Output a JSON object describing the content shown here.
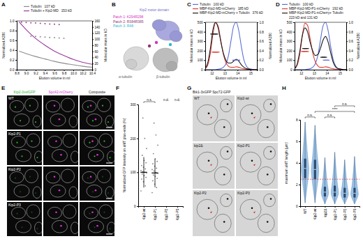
{
  "panels": [
    "A",
    "B",
    "C",
    "D",
    "E",
    "F",
    "G",
    "H"
  ],
  "chart_data": [
    {
      "type": "line",
      "x_label": "Elution volume in ml",
      "y_label": "Normalized A280",
      "y2_label": "Molecular mass in kD",
      "xlim": [
        8.8,
        10.4
      ],
      "xticks": [
        8.8,
        {
          "value": 9,
          "label": "9.0"
        },
        9.2,
        9.4,
        9.6,
        9.8,
        {
          "value": 10,
          "label": "10.0"
        },
        10.2,
        10.4
      ],
      "ylim": [
        0,
        1
      ],
      "yticks": [
        {
          "value": 0,
          "label": "0.0"
        },
        0.2,
        0.4,
        0.6,
        0.8,
        {
          "value": 1,
          "label": "1.0"
        }
      ],
      "y2lim": [
        0,
        160
      ],
      "y2ticks": [
        0,
        20,
        40,
        60,
        80,
        100,
        120,
        140,
        160
      ],
      "series": [
        {
          "name": "Tubulin",
          "annotation": "107 kD",
          "color": "#8c8c8c",
          "x": [
            8.85,
            9.0,
            9.2,
            9.4,
            9.6,
            9.8,
            10.0,
            10.2,
            10.4
          ],
          "values": [
            0.38,
            0.33,
            0.27,
            0.22,
            0.17,
            0.13,
            0.1,
            0.07,
            0.05
          ]
        },
        {
          "name": "Tubulin + Kip2-MD",
          "annotation": "153 kD",
          "color": "#9b3a9b",
          "x": [
            8.85,
            9.0,
            9.2,
            9.4,
            9.6,
            9.8,
            10.0,
            10.2,
            10.4
          ],
          "values": [
            0.98,
            0.82,
            0.64,
            0.5,
            0.38,
            0.29,
            0.21,
            0.15,
            0.11
          ]
        },
        {
          "type": "scatter",
          "marker": "circle",
          "axis": "y2",
          "color": "#8c8c8c",
          "x": [
            9.1,
            9.2,
            9.3,
            9.4,
            9.5,
            9.6,
            9.7,
            9.8
          ],
          "values": [
            110,
            109,
            108,
            107,
            106,
            105,
            104,
            103
          ]
        },
        {
          "type": "scatter",
          "marker": "circle",
          "axis": "y2",
          "color": "#9b3a9b",
          "x": [
            8.9,
            9.0,
            9.1,
            9.2,
            9.3,
            9.4,
            9.5,
            9.6,
            9.7
          ],
          "values": [
            156,
            155,
            154,
            153,
            152,
            151,
            150,
            149,
            148
          ]
        }
      ]
    },
    {
      "type": "line",
      "x_label": "Elution volume in ml",
      "y_label": "Molecular mass in kD",
      "y2_label": "Normalized A280",
      "xlim": [
        11.5,
        15.5
      ],
      "xticks": [
        12,
        13,
        14,
        15
      ],
      "ylim": [
        0,
        500
      ],
      "yticks": [
        0,
        100,
        200,
        300,
        400,
        500
      ],
      "y2lim": [
        0,
        1
      ],
      "y2ticks": [
        {
          "value": 0,
          "label": "0.0"
        },
        0.2,
        0.4,
        0.6,
        0.8,
        {
          "value": 1,
          "label": "1.0"
        }
      ],
      "series": [
        {
          "name": "Tubulin",
          "annotation": "100 kD",
          "color": "#5b6fd6",
          "axis": "y2",
          "x": [
            11.5,
            11.7,
            11.9,
            12.1,
            12.3,
            12.5,
            12.7,
            12.9,
            13.1,
            13.3,
            13.5,
            13.7,
            13.9,
            14.1,
            14.3,
            14.5,
            14.7,
            14.9,
            15.1,
            15.3,
            15.5
          ],
          "values": [
            0,
            0,
            0,
            0,
            0,
            0.01,
            0.02,
            0.05,
            0.12,
            0.3,
            0.62,
            0.92,
            1,
            0.82,
            0.48,
            0.2,
            0.07,
            0.02,
            0.01,
            0,
            0
          ]
        },
        {
          "name": "MBP-Kip2-MD-mCherry",
          "annotation": "185 kD",
          "color": "#e0403a",
          "axis": "y2",
          "x": [
            11.5,
            11.7,
            11.9,
            12.1,
            12.3,
            12.5,
            12.7,
            12.9,
            13.1,
            13.3,
            13.5,
            13.7,
            13.9,
            14.1,
            14.3,
            14.5,
            14.7,
            14.9,
            15.1,
            15.3,
            15.5
          ],
          "values": [
            0.02,
            0.1,
            0.35,
            0.75,
            0.99,
            0.92,
            0.62,
            0.33,
            0.15,
            0.07,
            0.05,
            0.05,
            0.06,
            0.05,
            0.03,
            0.02,
            0.01,
            0.01,
            0,
            0,
            0
          ]
        },
        {
          "name": "MBP-Kip2-MD-mCherry + Tubulin",
          "annotation": "376 kD",
          "color": "#1a1a1a",
          "axis": "y2",
          "x": [
            11.5,
            11.7,
            11.9,
            12.1,
            12.3,
            12.5,
            12.7,
            12.9,
            13.1,
            13.3,
            13.5,
            13.7,
            13.9,
            14.1,
            14.3,
            14.5,
            14.7,
            14.9,
            15.1,
            15.3,
            15.5
          ],
          "values": [
            0.03,
            0.15,
            0.45,
            0.85,
            1,
            0.88,
            0.6,
            0.35,
            0.2,
            0.14,
            0.14,
            0.18,
            0.22,
            0.18,
            0.1,
            0.05,
            0.02,
            0.01,
            0,
            0,
            0
          ]
        },
        {
          "type": "scatter",
          "marker": "dash",
          "color": "#5b6fd6",
          "x": [
            13.7,
            13.8,
            13.9,
            14.0,
            14.1
          ],
          "values": [
            100,
            100,
            100,
            100,
            100
          ]
        },
        {
          "type": "scatter",
          "marker": "dash",
          "color": "#e0403a",
          "x": [
            12.1,
            12.2,
            12.3,
            12.4,
            12.5
          ],
          "values": [
            185,
            185,
            185,
            185,
            185
          ]
        },
        {
          "type": "scatter",
          "marker": "dash",
          "color": "#1a1a1a",
          "x": [
            12.0,
            12.1,
            12.2,
            12.3,
            12.4
          ],
          "values": [
            376,
            376,
            376,
            376,
            376
          ]
        }
      ]
    },
    {
      "type": "line",
      "x_label": "Elution volume in ml",
      "y_label": "Molecular mass in kD",
      "y2_label": "Normalized A280",
      "xlim": [
        11.5,
        15.5
      ],
      "xticks": [
        12,
        13,
        14,
        15
      ],
      "ylim": [
        0,
        500
      ],
      "yticks": [
        0,
        100,
        200,
        300,
        400,
        500
      ],
      "y2lim": [
        0,
        1
      ],
      "y2ticks": [
        {
          "value": 0,
          "label": "0.0"
        },
        0.2,
        0.4,
        0.6,
        0.8,
        {
          "value": 1,
          "label": "1.0"
        }
      ],
      "series": [
        {
          "name": "Tubulin",
          "annotation": "100 kD",
          "color": "#5b6fd6",
          "axis": "y2",
          "x": [
            11.5,
            11.7,
            11.9,
            12.1,
            12.3,
            12.5,
            12.7,
            12.9,
            13.1,
            13.3,
            13.5,
            13.7,
            13.9,
            14.1,
            14.3,
            14.5,
            14.7,
            14.9,
            15.1,
            15.3,
            15.5
          ],
          "values": [
            0,
            0,
            0,
            0,
            0,
            0.01,
            0.02,
            0.05,
            0.12,
            0.3,
            0.62,
            0.92,
            1,
            0.82,
            0.48,
            0.2,
            0.07,
            0.02,
            0.01,
            0,
            0
          ]
        },
        {
          "name": "MBP-Kip2-MD-P1-mCherry",
          "annotation": "192 kD",
          "color": "#e0403a",
          "axis": "y2",
          "x": [
            11.5,
            11.7,
            11.9,
            12.1,
            12.3,
            12.5,
            12.7,
            12.9,
            13.1,
            13.3,
            13.5,
            13.7,
            13.9,
            14.1,
            14.3,
            14.5,
            14.7,
            14.9,
            15.1,
            15.3,
            15.5
          ],
          "values": [
            0.02,
            0.09,
            0.32,
            0.72,
            0.98,
            0.94,
            0.66,
            0.36,
            0.17,
            0.08,
            0.05,
            0.05,
            0.06,
            0.05,
            0.03,
            0.02,
            0.01,
            0.01,
            0,
            0,
            0
          ]
        },
        {
          "name": "MBP-Kip2-MD-P1-mCherry+ Tubulin",
          "annotation": "223 kD and 131 kD",
          "color": "#1a1a1a",
          "axis": "y2",
          "x": [
            11.5,
            11.7,
            11.9,
            12.1,
            12.3,
            12.5,
            12.7,
            12.9,
            13.1,
            13.3,
            13.5,
            13.7,
            13.9,
            14.1,
            14.3,
            14.5,
            14.7,
            14.9,
            15.1,
            15.3,
            15.5
          ],
          "values": [
            0.02,
            0.12,
            0.38,
            0.72,
            0.88,
            0.8,
            0.58,
            0.4,
            0.3,
            0.32,
            0.45,
            0.62,
            0.7,
            0.58,
            0.35,
            0.15,
            0.05,
            0.02,
            0.01,
            0,
            0
          ]
        },
        {
          "type": "scatter",
          "marker": "dash",
          "color": "#5b6fd6",
          "x": [
            13.8,
            13.9,
            14.0,
            14.1
          ],
          "values": [
            100,
            100,
            100,
            100
          ]
        },
        {
          "type": "scatter",
          "marker": "dash",
          "color": "#e0403a",
          "x": [
            12.1,
            12.2,
            12.3,
            12.4,
            12.5
          ],
          "values": [
            192,
            192,
            192,
            192,
            192
          ]
        },
        {
          "type": "scatter",
          "marker": "dash",
          "color": "#1a1a1a",
          "x": [
            12.2,
            12.3,
            12.4,
            12.5,
            13.6,
            13.7,
            13.8,
            13.9
          ],
          "values": [
            223,
            223,
            223,
            223,
            131,
            131,
            131,
            131
          ]
        }
      ]
    },
    {
      "type": "strip",
      "y_label": "Normalized GFP intensity on aMT plus-ends (%)",
      "categories": [
        "Kip2-wt",
        "Kip2-P1",
        "Kip2-P2",
        "Kip2-P3"
      ],
      "values": [
        [
          45,
          60,
          72,
          80,
          85,
          90,
          95,
          98,
          100,
          102,
          105,
          110,
          115,
          120,
          128,
          135,
          150,
          170,
          200,
          260
        ],
        [
          40,
          55,
          65,
          75,
          82,
          88,
          92,
          97,
          100,
          104,
          108,
          112,
          118,
          125,
          132,
          140,
          155,
          180,
          210,
          245
        ],
        [],
        []
      ],
      "means": [
        100,
        98,
        null,
        null
      ],
      "sd": [
        45,
        42,
        null,
        null
      ],
      "ylim": [
        0,
        300
      ],
      "yticks": [
        0,
        100,
        200,
        300
      ],
      "color": "#1a1a1a",
      "annotations": [
        {
          "text": "n.s.",
          "between": [
            "Kip2-wt",
            "Kip2-P1"
          ]
        },
        {
          "text": "n.d.",
          "at": "Kip2-P2"
        },
        {
          "text": "n.d.",
          "at": "Kip2-P3"
        }
      ]
    },
    {
      "type": "violin",
      "y_label": "maximum aMT length (µm)",
      "categories": [
        "WT",
        "Kip2-wt",
        "kip2Δ",
        "Kip2-P1",
        "Kip2-P2",
        "Kip2-P3"
      ],
      "min": [
        0.3,
        0.3,
        0.2,
        0.2,
        0.2,
        0.2
      ],
      "q1": [
        2.6,
        2.5,
        0.9,
        0.9,
        0.8,
        0.8
      ],
      "median": [
        3.5,
        3.4,
        1.3,
        1.3,
        1.2,
        1.2
      ],
      "q3": [
        4.4,
        4.3,
        1.8,
        1.9,
        1.7,
        1.7
      ],
      "max": [
        7.8,
        7.5,
        4.5,
        5.0,
        4.3,
        4.6
      ],
      "ylim": [
        0,
        8
      ],
      "yticks": [
        0,
        2,
        4,
        6,
        8
      ],
      "color": "#9cc3e6",
      "reference_line": 2.5,
      "annotations": [
        {
          "text": "n.s.",
          "between": [
            "WT",
            "Kip2-wt"
          ]
        },
        {
          "text": "****",
          "between": [
            "Kip2-wt",
            "Kip2-P3"
          ]
        },
        {
          "text": "n.s.",
          "between": [
            "kip2Δ",
            "Kip2-P1"
          ]
        },
        {
          "text": "n.s.",
          "between": [
            "Kip2-P1",
            "Kip2-P3"
          ]
        }
      ]
    }
  ],
  "structure": {
    "labels": [
      {
        "text": "Kip2 motor domain",
        "color": "#6e6ec8"
      },
      {
        "text": "Patch 1: K294R298",
        "color": "#d633c2"
      },
      {
        "text": "Patch 2: R384R385",
        "color": "#8e3a6e"
      },
      {
        "text": "Patch 3: R48",
        "color": "#2fb6d6"
      },
      {
        "text": "α-tubulin",
        "color": "#555555"
      },
      {
        "text": "β-tubulin",
        "color": "#555555"
      }
    ]
  },
  "micrographs_E": {
    "columns": [
      {
        "text": "Kip2-3xsfGFP",
        "color": "#2fb52f"
      },
      {
        "text": "Spc42-mCherry",
        "color": "#d633d6"
      },
      {
        "text": "Composite",
        "color": "#222222"
      }
    ],
    "rows": [
      "WT",
      "Kip2-P1",
      "Kip2-P2",
      "Kip2-P3"
    ]
  },
  "micrographs_G": {
    "title": "Bik1-3xGFP Spc72-GFP",
    "labels": [
      "WT",
      "Kip2-wt",
      "kip2Δ",
      "Kip2-P1",
      "Kip2-P2",
      "Kip2-P3"
    ]
  }
}
